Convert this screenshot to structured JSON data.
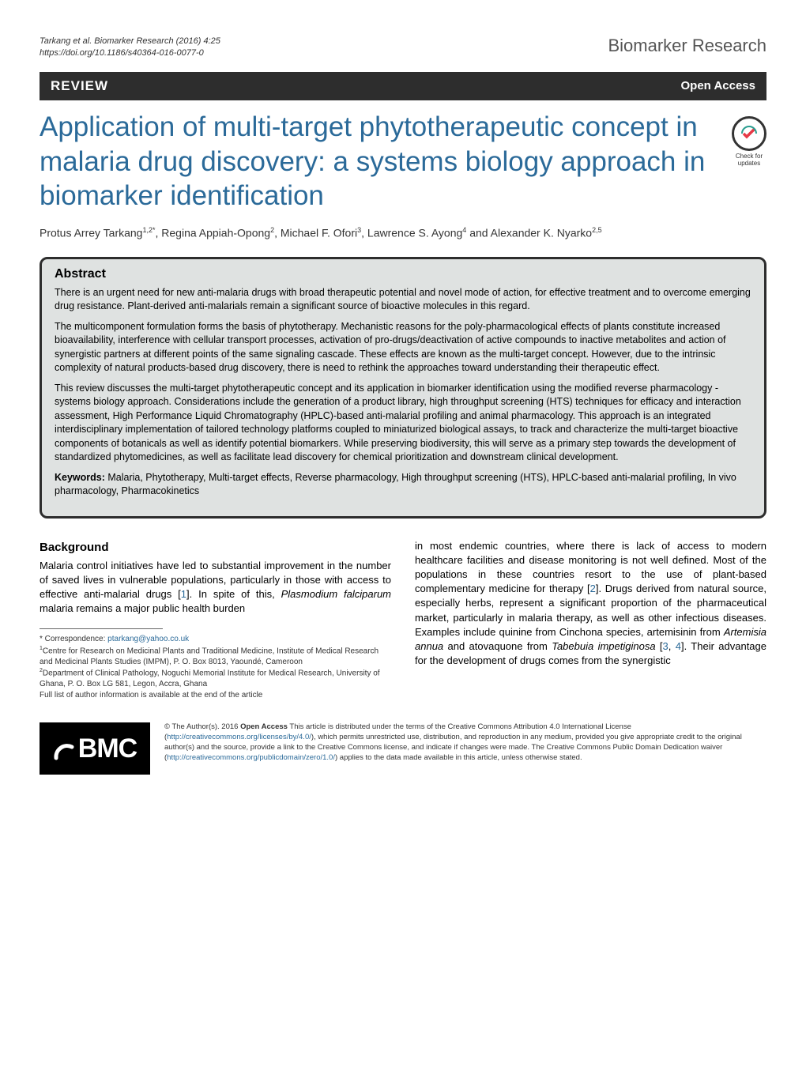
{
  "header": {
    "citation_line1": "Tarkang et al. Biomarker Research          (2016) 4:25",
    "citation_line2": "https://doi.org/10.1186/s40364-016-0077-0",
    "journal": "Biomarker Research"
  },
  "review_bar": {
    "label": "REVIEW",
    "open_access": "Open Access"
  },
  "title": "Application of multi-target phytotherapeutic concept in malaria drug discovery: a systems biology approach in biomarker identification",
  "crossmark": {
    "line1": "Check for",
    "line2": "updates"
  },
  "authors_html": "Protus Arrey Tarkang<sup>1,2*</sup>, Regina Appiah-Opong<sup>2</sup>, Michael F. Ofori<sup>3</sup>, Lawrence S. Ayong<sup>4</sup> and Alexander K. Nyarko<sup>2,5</sup>",
  "abstract": {
    "heading": "Abstract",
    "para1": "There is an urgent need for new anti-malaria drugs with broad therapeutic potential and novel mode of action, for effective treatment and to overcome emerging drug resistance. Plant-derived anti-malarials remain a significant source of bioactive molecules in this regard.",
    "para2": "The multicomponent formulation forms the basis of phytotherapy. Mechanistic reasons for the poly-pharmacological effects of plants constitute increased bioavailability, interference with cellular transport processes, activation of pro-drugs/deactivation of active compounds to inactive metabolites and action of synergistic partners at different points of the same signaling cascade. These effects are known as the multi-target concept. However, due to the intrinsic complexity of natural products-based drug discovery, there is need to rethink the approaches toward understanding their therapeutic effect.",
    "para3": "This review discusses the multi-target phytotherapeutic concept and its application in biomarker identification using the modified reverse pharmacology - systems biology approach. Considerations include the generation of a product library, high throughput screening (HTS) techniques for efficacy and interaction assessment, High Performance Liquid Chromatography (HPLC)-based anti-malarial profiling and animal pharmacology. This approach is an integrated interdisciplinary implementation of tailored technology platforms coupled to miniaturized biological assays, to track and characterize the multi-target bioactive components of botanicals as well as identify potential biomarkers. While preserving biodiversity, this will serve as a primary step towards the development of standardized phytomedicines, as well as facilitate lead discovery for chemical prioritization and downstream clinical development.",
    "keywords_label": "Keywords:",
    "keywords": " Malaria, Phytotherapy, Multi-target effects, Reverse pharmacology, High throughput screening (HTS), HPLC-based anti-malarial profiling, In vivo pharmacology, Pharmacokinetics"
  },
  "background": {
    "heading": "Background",
    "col1_pre": "Malaria control initiatives have led to substantial improvement in the number of saved lives in vulnerable populations, particularly in those with access to effective anti-malarial drugs [",
    "ref1": "1",
    "col1_mid": "]. In spite of this, ",
    "col1_ital": "Plasmodium falciparum",
    "col1_post": " malaria remains a major public health burden",
    "col2_pre": "in most endemic countries, where there is lack of access to modern healthcare facilities and disease monitoring is not well defined. Most of the populations in these countries resort to the use of plant-based complementary medicine for therapy [",
    "ref2": "2",
    "col2_a": "]. Drugs derived from natural source, especially herbs, represent a significant proportion of the pharmaceutical market, particularly in malaria therapy, as well as other infectious diseases. Examples include quinine from Cinchona species, artemisinin from ",
    "col2_ital1": "Artemisia annua",
    "col2_b": " and atovaquone from ",
    "col2_ital2": "Tabebuia impetiginosa",
    "col2_c": " [",
    "ref3": "3",
    "col2_d": ", ",
    "ref4": "4",
    "col2_e": "]. Their advantage for the development of drugs comes from the synergistic"
  },
  "footnotes": {
    "corr": "* Correspondence: ",
    "email": "ptarkang@yahoo.co.uk",
    "aff1": "Centre for Research on Medicinal Plants and Traditional Medicine, Institute of Medical Research and Medicinal Plants Studies (IMPM), P. O. Box 8013, Yaoundé, Cameroon",
    "aff2": "Department of Clinical Pathology, Noguchi Memorial Institute for Medical Research, University of Ghana, P. O. Box LG 581, Legon, Accra, Ghana",
    "full": "Full list of author information is available at the end of the article"
  },
  "bmc": {
    "logo_text": "BMC",
    "license_pre": "© The Author(s). 2016 ",
    "license_bold": "Open Access",
    "license_a": " This article is distributed under the terms of the Creative Commons Attribution 4.0 International License (",
    "license_url1": "http://creativecommons.org/licenses/by/4.0/",
    "license_b": "), which permits unrestricted use, distribution, and reproduction in any medium, provided you give appropriate credit to the original author(s) and the source, provide a link to the Creative Commons license, and indicate if changes were made. The Creative Commons Public Domain Dedication waiver (",
    "license_url2": "http://creativecommons.org/publicdomain/zero/1.0/",
    "license_c": ") applies to the data made available in this article, unless otherwise stated."
  },
  "colors": {
    "title": "#2b6a99",
    "bar_bg": "#2d2d2d",
    "abstract_bg": "#dfe2e1",
    "link": "#2b6a99"
  }
}
